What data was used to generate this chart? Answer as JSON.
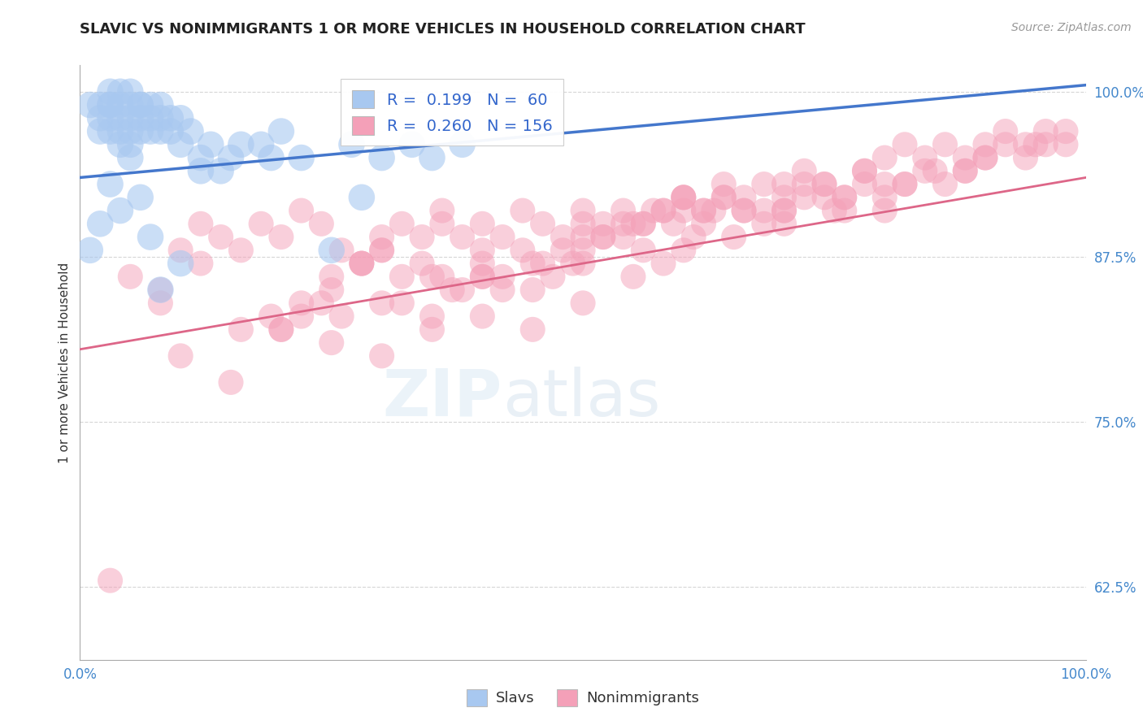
{
  "title": "SLAVIC VS NONIMMIGRANTS 1 OR MORE VEHICLES IN HOUSEHOLD CORRELATION CHART",
  "source": "Source: ZipAtlas.com",
  "ylabel": "1 or more Vehicles in Household",
  "xlim": [
    0.0,
    1.0
  ],
  "ylim": [
    0.57,
    1.02
  ],
  "yticks": [
    0.625,
    0.75,
    0.875,
    1.0
  ],
  "ytick_labels": [
    "62.5%",
    "75.0%",
    "87.5%",
    "100.0%"
  ],
  "xticks": [
    0.0,
    0.25,
    0.5,
    0.75,
    1.0
  ],
  "xtick_labels": [
    "0.0%",
    "",
    "",
    "",
    "100.0%"
  ],
  "legend_slavs_R": "0.199",
  "legend_slavs_N": "60",
  "legend_nonimm_R": "0.260",
  "legend_nonimm_N": "156",
  "slavs_color": "#a8c8f0",
  "nonimm_color": "#f4a0b8",
  "slavs_line_color": "#4477cc",
  "nonimm_line_color": "#dd6688",
  "background_color": "#ffffff",
  "grid_color": "#cccccc",
  "slavs_x": [
    0.01,
    0.02,
    0.02,
    0.02,
    0.03,
    0.03,
    0.03,
    0.03,
    0.03,
    0.04,
    0.04,
    0.04,
    0.04,
    0.04,
    0.05,
    0.05,
    0.05,
    0.05,
    0.05,
    0.06,
    0.06,
    0.06,
    0.06,
    0.07,
    0.07,
    0.07,
    0.08,
    0.08,
    0.08,
    0.09,
    0.09,
    0.1,
    0.1,
    0.11,
    0.12,
    0.13,
    0.14,
    0.15,
    0.16,
    0.18,
    0.19,
    0.2,
    0.22,
    0.25,
    0.27,
    0.28,
    0.3,
    0.33,
    0.35,
    0.38,
    0.01,
    0.02,
    0.03,
    0.04,
    0.05,
    0.06,
    0.07,
    0.08,
    0.1,
    0.12
  ],
  "slavs_y": [
    0.99,
    0.99,
    0.98,
    0.97,
    1.0,
    0.99,
    0.99,
    0.98,
    0.97,
    1.0,
    0.99,
    0.98,
    0.97,
    0.96,
    1.0,
    0.99,
    0.98,
    0.97,
    0.96,
    0.99,
    0.99,
    0.98,
    0.97,
    0.99,
    0.98,
    0.97,
    0.99,
    0.98,
    0.97,
    0.98,
    0.97,
    0.98,
    0.96,
    0.97,
    0.95,
    0.96,
    0.94,
    0.95,
    0.96,
    0.96,
    0.95,
    0.97,
    0.95,
    0.88,
    0.96,
    0.92,
    0.95,
    0.96,
    0.95,
    0.96,
    0.88,
    0.9,
    0.93,
    0.91,
    0.95,
    0.92,
    0.89,
    0.85,
    0.87,
    0.94
  ],
  "nonimm_x": [
    0.03,
    0.05,
    0.08,
    0.1,
    0.12,
    0.14,
    0.16,
    0.18,
    0.2,
    0.22,
    0.24,
    0.26,
    0.28,
    0.3,
    0.3,
    0.32,
    0.34,
    0.36,
    0.36,
    0.38,
    0.4,
    0.4,
    0.42,
    0.44,
    0.46,
    0.48,
    0.5,
    0.5,
    0.52,
    0.54,
    0.56,
    0.58,
    0.6,
    0.6,
    0.62,
    0.64,
    0.66,
    0.68,
    0.7,
    0.7,
    0.72,
    0.74,
    0.76,
    0.78,
    0.8,
    0.8,
    0.82,
    0.84,
    0.86,
    0.88,
    0.9,
    0.92,
    0.94,
    0.96,
    0.98,
    0.8,
    0.82,
    0.84,
    0.86,
    0.88,
    0.9,
    0.92,
    0.94,
    0.96,
    0.98,
    0.7,
    0.72,
    0.74,
    0.76,
    0.78,
    0.6,
    0.62,
    0.64,
    0.66,
    0.68,
    0.55,
    0.57,
    0.59,
    0.61,
    0.63,
    0.5,
    0.52,
    0.54,
    0.56,
    0.58,
    0.45,
    0.47,
    0.49,
    0.4,
    0.42,
    0.35,
    0.37,
    0.32,
    0.28,
    0.25,
    0.22,
    0.19,
    0.16,
    0.12,
    0.08,
    0.25,
    0.3,
    0.35,
    0.4,
    0.45,
    0.5,
    0.2,
    0.22,
    0.24,
    0.26,
    0.28,
    0.3,
    0.32,
    0.34,
    0.36,
    0.38,
    0.4,
    0.42,
    0.44,
    0.46,
    0.48,
    0.5,
    0.52,
    0.54,
    0.56,
    0.58,
    0.6,
    0.62,
    0.64,
    0.66,
    0.68,
    0.7,
    0.72,
    0.74,
    0.76,
    0.78,
    0.8,
    0.85,
    0.9,
    0.95,
    0.1,
    0.15,
    0.2,
    0.25,
    0.3,
    0.35,
    0.4,
    0.45,
    0.5,
    0.55,
    0.6,
    0.65,
    0.7,
    0.75,
    0.82,
    0.88
  ],
  "nonimm_y": [
    0.63,
    0.86,
    0.85,
    0.88,
    0.9,
    0.89,
    0.88,
    0.9,
    0.89,
    0.91,
    0.9,
    0.88,
    0.87,
    0.89,
    0.88,
    0.9,
    0.89,
    0.91,
    0.9,
    0.89,
    0.9,
    0.88,
    0.89,
    0.91,
    0.9,
    0.89,
    0.91,
    0.9,
    0.89,
    0.91,
    0.9,
    0.91,
    0.92,
    0.91,
    0.9,
    0.92,
    0.91,
    0.93,
    0.92,
    0.91,
    0.93,
    0.92,
    0.91,
    0.93,
    0.92,
    0.91,
    0.93,
    0.94,
    0.93,
    0.94,
    0.95,
    0.96,
    0.95,
    0.96,
    0.97,
    0.95,
    0.96,
    0.95,
    0.96,
    0.95,
    0.96,
    0.97,
    0.96,
    0.97,
    0.96,
    0.93,
    0.94,
    0.93,
    0.92,
    0.94,
    0.92,
    0.91,
    0.93,
    0.92,
    0.91,
    0.9,
    0.91,
    0.9,
    0.89,
    0.91,
    0.88,
    0.89,
    0.9,
    0.88,
    0.87,
    0.87,
    0.86,
    0.87,
    0.86,
    0.85,
    0.86,
    0.85,
    0.84,
    0.87,
    0.86,
    0.84,
    0.83,
    0.82,
    0.87,
    0.84,
    0.81,
    0.8,
    0.82,
    0.83,
    0.82,
    0.84,
    0.82,
    0.83,
    0.84,
    0.83,
    0.87,
    0.88,
    0.86,
    0.87,
    0.86,
    0.85,
    0.87,
    0.86,
    0.88,
    0.87,
    0.88,
    0.89,
    0.9,
    0.89,
    0.9,
    0.91,
    0.92,
    0.91,
    0.92,
    0.91,
    0.9,
    0.91,
    0.92,
    0.93,
    0.92,
    0.94,
    0.93,
    0.94,
    0.95,
    0.96,
    0.8,
    0.78,
    0.82,
    0.85,
    0.84,
    0.83,
    0.86,
    0.85,
    0.87,
    0.86,
    0.88,
    0.89,
    0.9,
    0.91,
    0.93,
    0.94
  ],
  "slavs_trendline_x0": 0.0,
  "slavs_trendline_x1": 1.0,
  "slavs_trendline_y0": 0.935,
  "slavs_trendline_y1": 1.005,
  "nonimm_trendline_x0": 0.0,
  "nonimm_trendline_x1": 1.0,
  "nonimm_trendline_y0": 0.805,
  "nonimm_trendline_y1": 0.935
}
